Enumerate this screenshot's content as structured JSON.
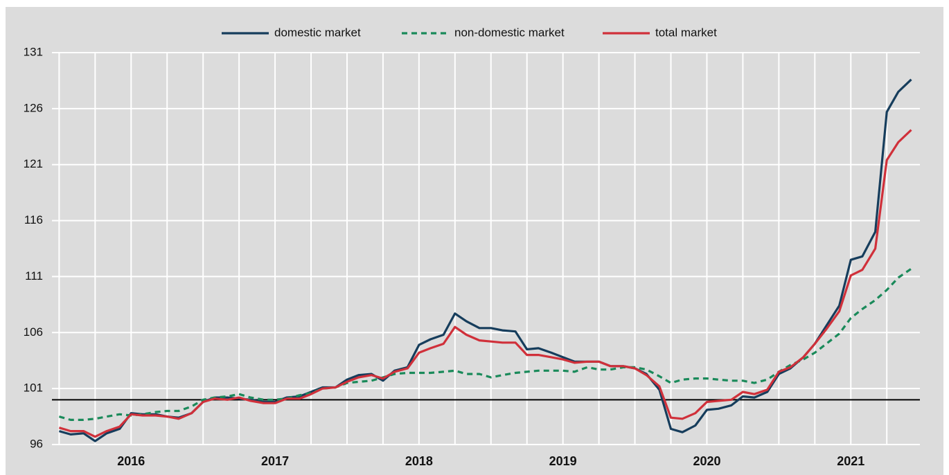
{
  "chart_data": {
    "type": "line",
    "x": [
      2016.0,
      2016.08,
      2016.17,
      2016.25,
      2016.33,
      2016.42,
      2016.5,
      2016.58,
      2016.67,
      2016.75,
      2016.83,
      2016.92,
      2017.0,
      2017.08,
      2017.17,
      2017.25,
      2017.33,
      2017.42,
      2017.5,
      2017.58,
      2017.67,
      2017.75,
      2017.83,
      2017.92,
      2018.0,
      2018.08,
      2018.17,
      2018.25,
      2018.33,
      2018.42,
      2018.5,
      2018.58,
      2018.67,
      2018.75,
      2018.83,
      2018.92,
      2019.0,
      2019.08,
      2019.17,
      2019.25,
      2019.33,
      2019.42,
      2019.5,
      2019.58,
      2019.67,
      2019.75,
      2019.83,
      2019.92,
      2020.0,
      2020.08,
      2020.17,
      2020.25,
      2020.33,
      2020.42,
      2020.5,
      2020.58,
      2020.67,
      2020.75,
      2020.83,
      2020.92,
      2021.0,
      2021.08,
      2021.17,
      2021.25,
      2021.33,
      2021.42,
      2021.5,
      2021.58,
      2021.67,
      2021.75,
      2021.83,
      2021.92
    ],
    "series": [
      {
        "name": "domestic market",
        "color": "#163d5c",
        "dash": false,
        "values": [
          97.2,
          96.9,
          97.0,
          96.3,
          97.0,
          97.4,
          98.8,
          98.7,
          98.7,
          98.5,
          98.4,
          98.8,
          99.8,
          100.2,
          100.2,
          100.1,
          100.0,
          99.8,
          99.8,
          100.2,
          100.3,
          100.7,
          101.1,
          101.1,
          101.8,
          102.2,
          102.3,
          101.7,
          102.6,
          102.9,
          104.9,
          105.4,
          105.8,
          107.7,
          107.0,
          106.4,
          106.4,
          106.2,
          106.1,
          104.5,
          104.6,
          104.2,
          103.8,
          103.4,
          103.4,
          103.4,
          103.0,
          103.0,
          102.8,
          102.3,
          100.9,
          97.4,
          97.1,
          97.7,
          99.1,
          99.2,
          99.5,
          100.3,
          100.2,
          100.7,
          102.3,
          102.8,
          103.8,
          105.0,
          106.6,
          108.4,
          112.5,
          112.8,
          115.0,
          125.7,
          127.5,
          128.6
        ]
      },
      {
        "name": "non-domestic market",
        "color": "#1a8a5a",
        "dash": true,
        "values": [
          98.5,
          98.2,
          98.2,
          98.3,
          98.5,
          98.7,
          98.6,
          98.7,
          98.9,
          99.0,
          99.0,
          99.4,
          100.0,
          100.2,
          100.3,
          100.5,
          100.2,
          100.0,
          100.0,
          100.1,
          100.4,
          100.6,
          101.0,
          101.1,
          101.5,
          101.6,
          101.7,
          102.0,
          102.3,
          102.4,
          102.4,
          102.4,
          102.5,
          102.6,
          102.3,
          102.3,
          102.0,
          102.2,
          102.4,
          102.5,
          102.6,
          102.6,
          102.6,
          102.5,
          102.9,
          102.7,
          102.7,
          102.9,
          102.9,
          102.7,
          102.1,
          101.5,
          101.8,
          101.9,
          101.9,
          101.8,
          101.7,
          101.7,
          101.5,
          101.8,
          102.5,
          103.1,
          103.6,
          104.2,
          105.0,
          105.9,
          107.3,
          108.1,
          108.9,
          109.8,
          110.9,
          111.7
        ]
      },
      {
        "name": "total market",
        "color": "#d0303a",
        "dash": false,
        "values": [
          97.5,
          97.2,
          97.2,
          96.7,
          97.2,
          97.6,
          98.7,
          98.6,
          98.6,
          98.5,
          98.3,
          98.8,
          99.8,
          100.1,
          100.0,
          100.2,
          99.9,
          99.7,
          99.7,
          100.1,
          100.1,
          100.5,
          101.0,
          101.1,
          101.6,
          102.0,
          102.2,
          101.9,
          102.5,
          102.8,
          104.2,
          104.6,
          105.0,
          106.5,
          105.8,
          105.3,
          105.2,
          105.1,
          105.1,
          104.0,
          104.0,
          103.8,
          103.6,
          103.3,
          103.4,
          103.4,
          103.0,
          103.0,
          102.8,
          102.2,
          101.2,
          98.4,
          98.3,
          98.8,
          99.8,
          99.9,
          100.0,
          100.7,
          100.5,
          100.9,
          102.5,
          102.9,
          103.8,
          105.0,
          106.3,
          107.9,
          111.1,
          111.6,
          113.5,
          121.4,
          123.0,
          124.1
        ]
      }
    ],
    "xlim": [
      2015.95,
      2021.98
    ],
    "xticks": [
      {
        "value": 2016.5,
        "label": "2016"
      },
      {
        "value": 2017.5,
        "label": "2017"
      },
      {
        "value": 2018.5,
        "label": "2018"
      },
      {
        "value": 2019.5,
        "label": "2019"
      },
      {
        "value": 2020.5,
        "label": "2020"
      },
      {
        "value": 2021.5,
        "label": "2021"
      }
    ],
    "xgrid_step": 0.25,
    "ylim": [
      96,
      131
    ],
    "yticks": [
      96,
      101,
      106,
      111,
      116,
      121,
      126,
      131
    ],
    "reference_line": 100,
    "grid": true,
    "legend": "top"
  }
}
